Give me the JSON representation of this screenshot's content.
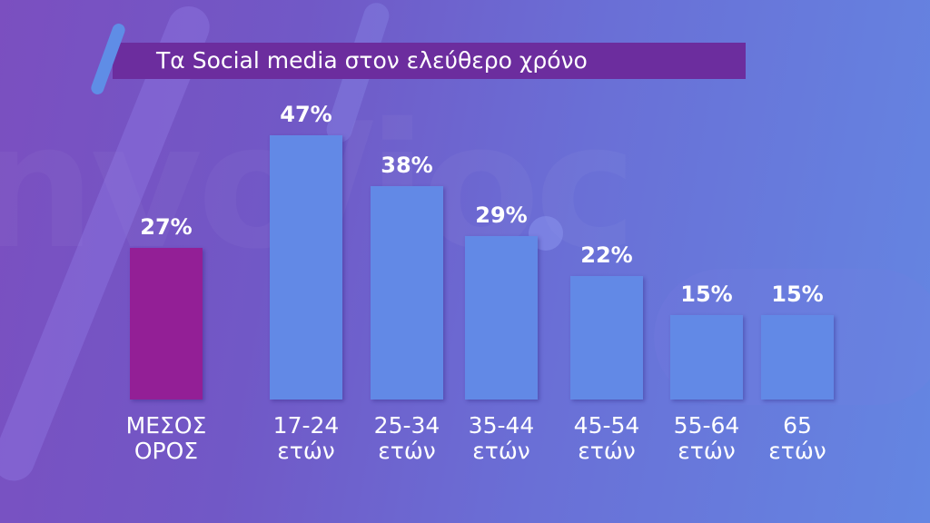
{
  "header": {
    "title": "Τα Social media στον ελεύθερο χρόνο"
  },
  "colors": {
    "average_bar": "#931f96",
    "age_bar": "#6289e6",
    "title_bar": "#6c2d9e",
    "text": "#ffffff"
  },
  "bars": [
    {
      "value_label": "27%",
      "line1": "ΜΕΣΟΣ",
      "line2": "ΟΡΟΣ"
    },
    {
      "value_label": "47%",
      "line1": "17-24",
      "line2": "ετών"
    },
    {
      "value_label": "38%",
      "line1": "25-34",
      "line2": "ετών"
    },
    {
      "value_label": "29%",
      "line1": "35-44",
      "line2": "ετών"
    },
    {
      "value_label": "22%",
      "line1": "45-54",
      "line2": "ετών"
    },
    {
      "value_label": "15%",
      "line1": "55-64",
      "line2": "ετών"
    },
    {
      "value_label": "15%",
      "line1": "65",
      "line2": "ετών"
    }
  ],
  "chart_data": {
    "type": "bar",
    "title": "Τα Social media στον ελεύθερο χρόνο",
    "xlabel": "",
    "ylabel": "",
    "categories": [
      "ΜΕΣΟΣ ΟΡΟΣ",
      "17-24 ετών",
      "25-34 ετών",
      "35-44 ετών",
      "45-54 ετών",
      "55-64 ετών",
      "65 ετών"
    ],
    "values": [
      27,
      47,
      38,
      29,
      22,
      15,
      15
    ],
    "unit": "%",
    "ylim": [
      0,
      50
    ],
    "grid": false,
    "legend": null,
    "highlight": {
      "category": "ΜΕΣΟΣ ΟΡΟΣ",
      "color": "#931f96"
    },
    "series_color": "#6289e6"
  }
}
